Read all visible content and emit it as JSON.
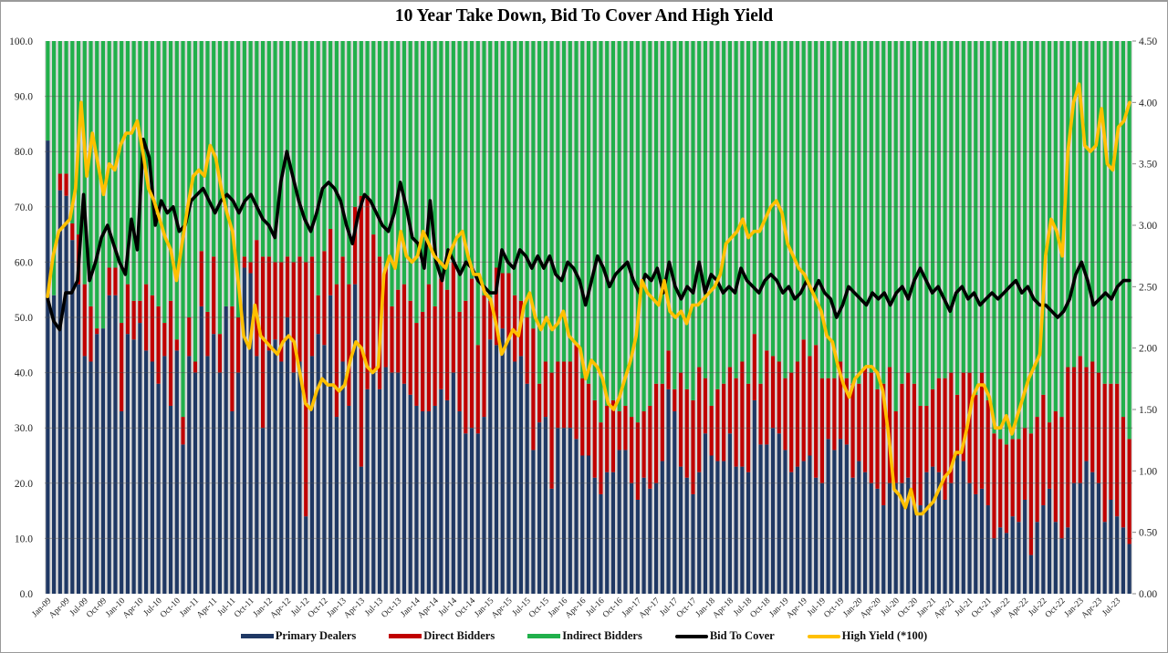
{
  "chart_data": {
    "type": "bar",
    "subtype": "stacked-bar-with-lines-dual-axis",
    "title": "10 Year Take Down, Bid To Cover And High Yield",
    "xlabel": "",
    "ylabel_left": "",
    "ylabel_right": "",
    "ylim_left": [
      0,
      100
    ],
    "ylim_right": [
      0,
      4.5
    ],
    "yticks_left": [
      "0.0",
      "10.0",
      "20.0",
      "30.0",
      "40.0",
      "50.0",
      "60.0",
      "70.0",
      "80.0",
      "90.0",
      "100.0"
    ],
    "yticks_right": [
      "0.00",
      "0.50",
      "1.00",
      "1.50",
      "2.00",
      "2.50",
      "3.00",
      "3.50",
      "4.00",
      "4.50"
    ],
    "grid": true,
    "legend_position": "bottom",
    "start_month": "Jan-09",
    "x_tick_labels": [
      "Jan-09",
      "Apr-09",
      "Jul-09",
      "Oct-09",
      "Jan-10",
      "Apr-10",
      "Jul-10",
      "Oct-10",
      "Jan-11",
      "Apr-11",
      "Jul-11",
      "Oct-11",
      "Jan-12",
      "Apr-12",
      "Jul-12",
      "Oct-12",
      "Jan-13",
      "Apr-13",
      "Jul-13",
      "Oct-13",
      "Jan-14",
      "Apr-14",
      "Jul-14",
      "Oct-14",
      "Jan-15",
      "Apr-15",
      "Jul-15",
      "Oct-15",
      "Jan-16",
      "Apr-16",
      "Jul-16",
      "Oct-16",
      "Jan-17",
      "Apr-17",
      "Jul-17",
      "Oct-17",
      "Jan-18",
      "Apr-18",
      "Jul-18",
      "Oct-18",
      "Jan-19",
      "Apr-19",
      "Jul-19",
      "Oct-19",
      "Jan-20",
      "Apr-20",
      "Jul-20",
      "Oct-20",
      "Jan-21",
      "Apr-21",
      "Jul-21",
      "Oct-21",
      "Jan-22",
      "Apr-22",
      "Jul-22",
      "Oct-22",
      "Jan-23",
      "Apr-23",
      "Jul-23"
    ],
    "series": [
      {
        "name": "Primary Dealers",
        "kind": "bar",
        "axis": "left",
        "color": "#1f3864",
        "values": [
          82,
          54,
          73,
          72,
          64,
          56,
          43,
          42,
          47,
          48,
          54,
          54,
          33,
          47,
          46,
          49,
          44,
          42,
          38,
          43,
          34,
          44,
          27,
          43,
          40,
          52,
          43,
          47,
          40,
          52,
          33,
          40,
          59,
          58,
          43,
          30,
          44,
          46,
          42,
          50,
          40,
          42,
          14,
          43,
          47,
          45,
          54,
          32,
          42,
          34,
          56,
          23,
          37,
          40,
          37,
          41,
          40,
          40,
          38,
          36,
          34,
          33,
          33,
          34,
          37,
          35,
          40,
          33,
          29,
          30,
          29,
          32,
          46,
          45,
          48,
          46,
          42,
          43,
          38,
          26,
          31,
          32,
          19,
          30,
          30,
          30,
          28,
          25,
          25,
          21,
          18,
          22,
          22,
          26,
          26,
          20,
          17,
          21,
          19,
          20,
          24,
          37,
          33,
          23,
          21,
          18,
          22,
          29,
          25,
          24,
          24,
          29,
          23,
          23,
          22,
          35,
          27,
          27,
          30,
          29,
          26,
          22,
          23,
          24,
          25,
          21,
          20,
          28,
          26,
          28,
          27,
          21,
          24,
          22,
          20,
          19,
          16,
          20,
          20,
          20,
          21,
          16,
          16,
          22,
          23,
          22,
          17,
          20,
          25,
          24,
          20,
          18,
          19,
          16,
          10,
          12,
          11,
          14,
          13,
          17,
          7,
          13,
          16,
          19,
          13,
          10,
          12,
          20,
          20,
          24,
          22,
          20,
          13,
          17,
          14,
          12,
          9
        ]
      },
      {
        "name": "Direct Bidders",
        "kind": "bar",
        "axis": "left",
        "color": "#c00000",
        "values": [
          0,
          0,
          3,
          4,
          3,
          9,
          13,
          10,
          1,
          0,
          5,
          5,
          16,
          9,
          7,
          4,
          12,
          12,
          14,
          6,
          19,
          2,
          5,
          7,
          2,
          10,
          8,
          14,
          7,
          0,
          19,
          10,
          2,
          2,
          21,
          31,
          17,
          14,
          18,
          11,
          20,
          19,
          46,
          18,
          7,
          17,
          12,
          24,
          19,
          22,
          14,
          49,
          35,
          25,
          24,
          18,
          12,
          15,
          18,
          17,
          15,
          18,
          23,
          18,
          20,
          20,
          20,
          18,
          24,
          27,
          16,
          22,
          7,
          14,
          10,
          12,
          12,
          10,
          12,
          22,
          7,
          10,
          21,
          12,
          12,
          12,
          17,
          14,
          13,
          14,
          13,
          12,
          13,
          7,
          8,
          12,
          14,
          12,
          15,
          18,
          14,
          7,
          4,
          17,
          16,
          17,
          19,
          10,
          9,
          13,
          14,
          12,
          16,
          19,
          16,
          12,
          11,
          17,
          13,
          13,
          13,
          18,
          19,
          22,
          18,
          24,
          19,
          11,
          13,
          14,
          12,
          17,
          14,
          19,
          20,
          18,
          22,
          21,
          13,
          18,
          19,
          22,
          18,
          12,
          14,
          17,
          22,
          20,
          11,
          16,
          20,
          18,
          21,
          19,
          19,
          16,
          16,
          14,
          15,
          13,
          22,
          19,
          20,
          12,
          20,
          22,
          29,
          21,
          23,
          17,
          20,
          20,
          25,
          21,
          24,
          20,
          19
        ]
      },
      {
        "name": "Indirect Bidders",
        "kind": "bar",
        "axis": "left",
        "color": "#21b04b",
        "values_rule": "100 - Primary Dealers - Direct Bidders"
      },
      {
        "name": "Bid To Cover",
        "kind": "line",
        "axis": "right",
        "color": "#000000",
        "values": [
          2.4,
          2.22,
          2.15,
          2.45,
          2.45,
          2.55,
          3.25,
          2.55,
          2.7,
          2.9,
          3.0,
          2.85,
          2.7,
          2.6,
          3.05,
          2.8,
          3.7,
          3.55,
          3.0,
          3.2,
          3.1,
          3.15,
          2.95,
          3.0,
          3.2,
          3.25,
          3.3,
          3.2,
          3.1,
          3.2,
          3.25,
          3.2,
          3.1,
          3.2,
          3.25,
          3.15,
          3.05,
          3.0,
          2.9,
          3.35,
          3.6,
          3.4,
          3.2,
          3.05,
          2.95,
          3.1,
          3.3,
          3.35,
          3.3,
          3.2,
          3.0,
          2.85,
          3.1,
          3.25,
          3.2,
          3.1,
          3.0,
          2.95,
          3.1,
          3.35,
          3.15,
          2.9,
          2.85,
          2.65,
          3.2,
          2.7,
          2.55,
          2.8,
          2.7,
          2.6,
          2.7,
          2.65,
          2.55,
          2.5,
          2.45,
          2.45,
          2.8,
          2.7,
          2.65,
          2.8,
          2.75,
          2.65,
          2.75,
          2.65,
          2.75,
          2.6,
          2.55,
          2.7,
          2.65,
          2.55,
          2.35,
          2.55,
          2.75,
          2.65,
          2.5,
          2.6,
          2.65,
          2.7,
          2.55,
          2.45,
          2.6,
          2.55,
          2.65,
          2.45,
          2.7,
          2.5,
          2.4,
          2.5,
          2.45,
          2.7,
          2.45,
          2.6,
          2.55,
          2.45,
          2.5,
          2.45,
          2.65,
          2.55,
          2.5,
          2.45,
          2.55,
          2.6,
          2.55,
          2.45,
          2.5,
          2.4,
          2.45,
          2.55,
          2.45,
          2.55,
          2.45,
          2.4,
          2.25,
          2.35,
          2.5,
          2.45,
          2.4,
          2.35,
          2.45,
          2.4,
          2.45,
          2.35,
          2.45,
          2.5,
          2.4,
          2.55,
          2.65,
          2.55,
          2.45,
          2.5,
          2.4,
          2.3,
          2.45,
          2.5,
          2.4,
          2.45,
          2.35,
          2.4,
          2.45,
          2.4,
          2.45,
          2.5,
          2.55,
          2.45,
          2.5,
          2.4,
          2.35,
          2.35,
          2.3,
          2.25,
          2.3,
          2.4,
          2.6,
          2.7,
          2.55,
          2.35,
          2.4,
          2.45,
          2.4,
          2.5,
          2.55,
          2.55
        ]
      },
      {
        "name": "High Yield (*100)",
        "kind": "line",
        "axis": "right",
        "color": "#ffc000",
        "values": [
          2.42,
          2.75,
          2.95,
          3.0,
          3.05,
          3.3,
          4.0,
          3.4,
          3.75,
          3.5,
          3.25,
          3.5,
          3.45,
          3.65,
          3.75,
          3.75,
          3.85,
          3.6,
          3.3,
          3.2,
          3.05,
          2.9,
          2.8,
          2.55,
          2.85,
          3.15,
          3.4,
          3.45,
          3.4,
          3.65,
          3.55,
          3.3,
          3.1,
          2.95,
          2.55,
          2.1,
          2.0,
          2.35,
          2.1,
          2.05,
          2.0,
          1.95,
          2.05,
          2.1,
          2.05,
          1.8,
          1.55,
          1.5,
          1.65,
          1.75,
          1.7,
          1.7,
          1.65,
          1.7,
          1.9,
          2.05,
          2.0,
          1.85,
          1.8,
          1.85,
          2.6,
          2.75,
          2.65,
          2.95,
          2.75,
          2.7,
          2.75,
          2.95,
          2.85,
          2.75,
          2.7,
          2.65,
          2.8,
          2.9,
          2.95,
          2.75,
          2.6,
          2.6,
          2.45,
          2.4,
          2.2,
          1.95,
          2.05,
          2.15,
          2.1,
          2.35,
          2.45,
          2.25,
          2.15,
          2.25,
          2.15,
          2.2,
          2.3,
          2.1,
          2.05,
          2.0,
          1.75,
          1.9,
          1.85,
          1.75,
          1.55,
          1.5,
          1.6,
          1.75,
          1.9,
          2.1,
          2.55,
          2.45,
          2.4,
          2.35,
          2.55,
          2.3,
          2.25,
          2.3,
          2.2,
          2.35,
          2.35,
          2.4,
          2.45,
          2.5,
          2.6,
          2.85,
          2.9,
          2.95,
          3.05,
          2.9,
          2.95,
          2.95,
          3.05,
          3.15,
          3.2,
          3.1,
          2.85,
          2.75,
          2.65,
          2.6,
          2.5,
          2.4,
          2.3,
          2.1,
          2.05,
          1.85,
          1.7,
          1.6,
          1.75,
          1.8,
          1.85,
          1.85,
          1.8,
          1.65,
          1.3,
          0.85,
          0.8,
          0.7,
          0.85,
          0.65,
          0.65,
          0.7,
          0.75,
          0.85,
          0.95,
          1.0,
          1.15,
          1.15,
          1.35,
          1.6,
          1.7,
          1.7,
          1.6,
          1.35,
          1.35,
          1.45,
          1.3,
          1.45,
          1.6,
          1.75,
          1.85,
          1.95,
          2.75,
          3.05,
          2.95,
          2.75,
          3.6,
          4.0,
          4.15,
          3.65,
          3.6,
          3.65,
          3.95,
          3.5,
          3.45,
          3.8,
          3.85,
          4.0
        ]
      }
    ]
  },
  "legend": {
    "items": [
      {
        "label": "Primary Dealers",
        "color": "#1f3864",
        "kind": "bar"
      },
      {
        "label": "Direct Bidders",
        "color": "#c00000",
        "kind": "bar"
      },
      {
        "label": "Indirect Bidders",
        "color": "#21b04b",
        "kind": "bar"
      },
      {
        "label": "Bid To Cover",
        "color": "#000000",
        "kind": "line"
      },
      {
        "label": "High Yield (*100)",
        "color": "#ffc000",
        "kind": "line"
      }
    ]
  }
}
